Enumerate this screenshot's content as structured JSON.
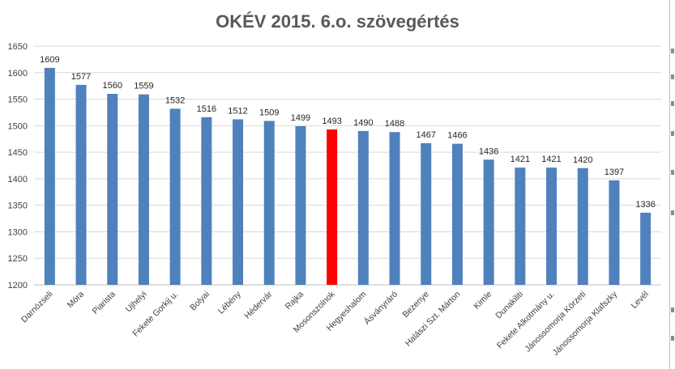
{
  "chart_data": {
    "type": "bar",
    "title": "OKÉV 2015. 6.o. szövegértés",
    "xlabel": "",
    "ylabel": "",
    "ylim": [
      1200,
      1650
    ],
    "y_ticks": [
      1200,
      1250,
      1300,
      1350,
      1400,
      1450,
      1500,
      1550,
      1600,
      1650
    ],
    "grid": true,
    "legend": "none",
    "bar_color": "#4f81bd",
    "highlight_color": "#ff0000",
    "highlight_category": "Mosonszolnok",
    "categories": [
      "Darnózseli",
      "Móra",
      "Piarista",
      "Ujhelyi",
      "Fekete Gorkij u.",
      "Bolyai",
      "Lébény",
      "Hédervár",
      "Rajka",
      "Mosonszolnok",
      "Hegyeshalom",
      "Ásványráró",
      "Bezenye",
      "Halászi Szt. Márton",
      "Kimle",
      "Dunakiliti",
      "Fekete Alkotmány u.",
      "Jánossomorja Körzeti",
      "Jánossomorja Klafszky",
      "Levél"
    ],
    "values": [
      1609,
      1577,
      1560,
      1559,
      1532,
      1516,
      1512,
      1509,
      1499,
      1493,
      1490,
      1488,
      1467,
      1466,
      1436,
      1421,
      1421,
      1420,
      1397,
      1336
    ]
  }
}
